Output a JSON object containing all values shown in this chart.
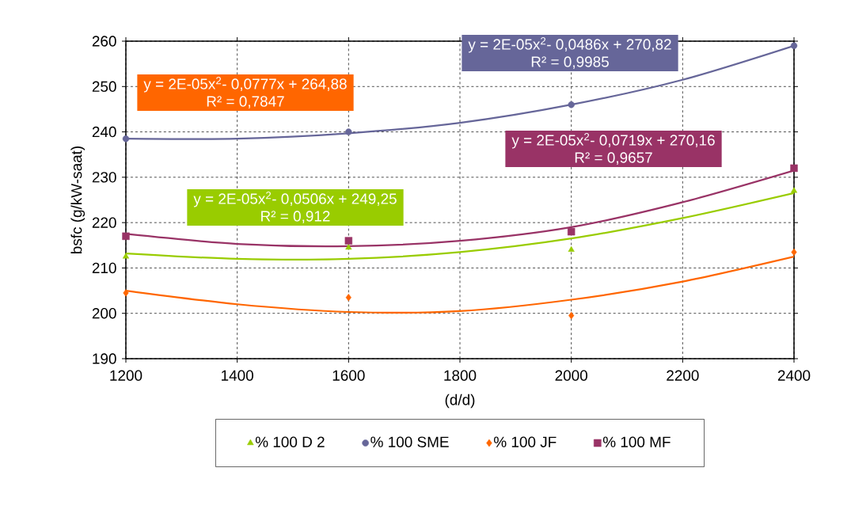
{
  "chart_data": {
    "type": "scatter",
    "xlabel": "(d/d)",
    "ylabel": "bsfc (g/kW-saat)",
    "x": [
      1200,
      1600,
      2000,
      2400
    ],
    "series": [
      {
        "name": "% 100 D 2",
        "color": "#99cc00",
        "marker": "triangle",
        "values": [
          212.5,
          214.5,
          214,
          227
        ]
      },
      {
        "name": "% 100 SME",
        "color": "#666699",
        "marker": "circle",
        "values": [
          238.5,
          240,
          246,
          259
        ]
      },
      {
        "name": "% 100 JF",
        "color": "#ff6600",
        "marker": "diamond",
        "values": [
          204.5,
          203.5,
          199.5,
          213.5
        ]
      },
      {
        "name": "% 100 MF",
        "color": "#993366",
        "marker": "square",
        "values": [
          217,
          216,
          218,
          232
        ]
      },
      {
        "type": "line",
        "color": "#99cc00",
        "x": [
          1200,
          1400,
          1600,
          1800,
          2000,
          2200,
          2400
        ],
        "values": [
          213.2,
          212,
          212,
          213.5,
          216.5,
          221,
          226.5
        ]
      },
      {
        "type": "line",
        "color": "#666699",
        "x": [
          1200,
          1400,
          1600,
          1800,
          2000,
          2200,
          2400
        ],
        "values": [
          238.5,
          238.5,
          239.7,
          242,
          246,
          251.5,
          259
        ]
      },
      {
        "type": "line",
        "color": "#ff6600",
        "x": [
          1200,
          1400,
          1600,
          1800,
          2000,
          2200,
          2400
        ],
        "values": [
          205,
          202,
          200.3,
          200.5,
          203,
          207,
          212.5
        ]
      },
      {
        "type": "line",
        "color": "#993366",
        "x": [
          1200,
          1400,
          1600,
          1800,
          2000,
          2200,
          2400
        ],
        "values": [
          217.5,
          215.3,
          214.8,
          216,
          219,
          224.5,
          231.5
        ]
      }
    ],
    "annotations": [
      "y = 2E-05x$^{2}$- 0,0506x + 249,25",
      "R² = 0,912",
      "y = 2E-05x$^{2}$- 0,0486x + 270,82",
      "R² = 0,9985",
      "y = 2E-05x$^{2}$- 0,0777x + 264,88",
      "R² = 0,7847",
      "y = 2E-05x$^{2}$- 0,0719x + 270,16",
      "R² = 0,9657"
    ],
    "xlim": [
      1200,
      2400
    ],
    "xticks": [
      1200,
      1400,
      1600,
      1800,
      2000,
      2200,
      2400
    ],
    "ylim": [
      190,
      260
    ],
    "yticks": [
      190,
      200,
      210,
      220,
      230,
      240,
      250,
      260
    ],
    "grid": true,
    "legend": "bottom"
  }
}
